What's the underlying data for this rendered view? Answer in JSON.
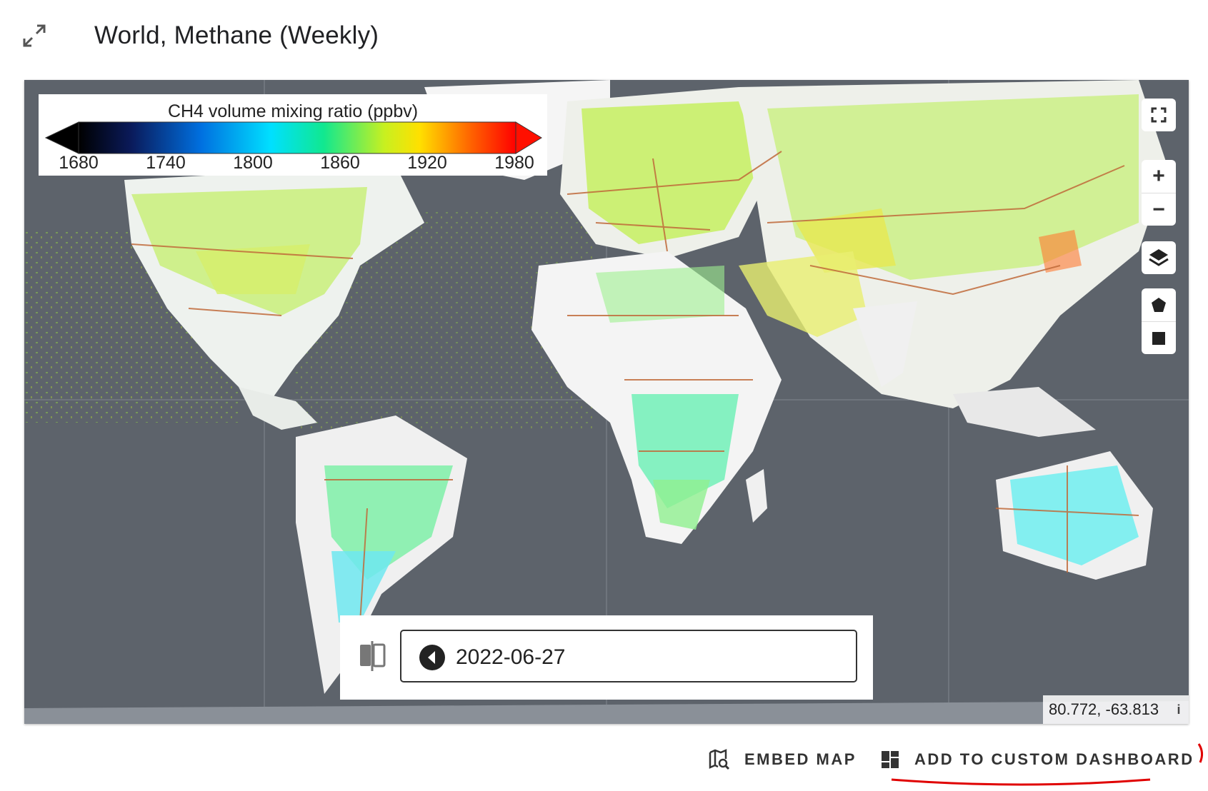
{
  "header": {
    "title": "World, Methane (Weekly)",
    "expand_icon": "expand-arrows-icon"
  },
  "legend": {
    "title": "CH4 volume mixing ratio (ppbv)",
    "ticks": [
      "1680",
      "1740",
      "1800",
      "1860",
      "1920",
      "1980"
    ],
    "colors": [
      "#000000",
      "#0a1a5a",
      "#0070e0",
      "#00e0ff",
      "#10e890",
      "#c8f020",
      "#ffe000",
      "#ff6000",
      "#ff0000"
    ]
  },
  "map_tools": {
    "fullscreen_icon": "fullscreen-icon",
    "zoom_in_label": "+",
    "zoom_out_label": "−",
    "layers_icon": "layers-icon",
    "polygon_icon": "polygon-draw-icon",
    "rectangle_icon": "rectangle-draw-icon"
  },
  "time_control": {
    "compare_icon": "compare-split-icon",
    "prev_icon": "chevron-left-circle-icon",
    "date": "2022-06-27"
  },
  "coordinates": {
    "value": "80.772, -63.813",
    "info_label": "i"
  },
  "actions": {
    "embed_label": "EMBED MAP",
    "embed_icon": "map-search-icon",
    "dashboard_label": "ADD TO CUSTOM DASHBOARD",
    "dashboard_icon": "dashboard-icon"
  },
  "colors": {
    "map_ocean": "#5d636b",
    "land": "#f2f2f2",
    "borders": "#c06a3a",
    "annotation_red": "#e00000"
  }
}
